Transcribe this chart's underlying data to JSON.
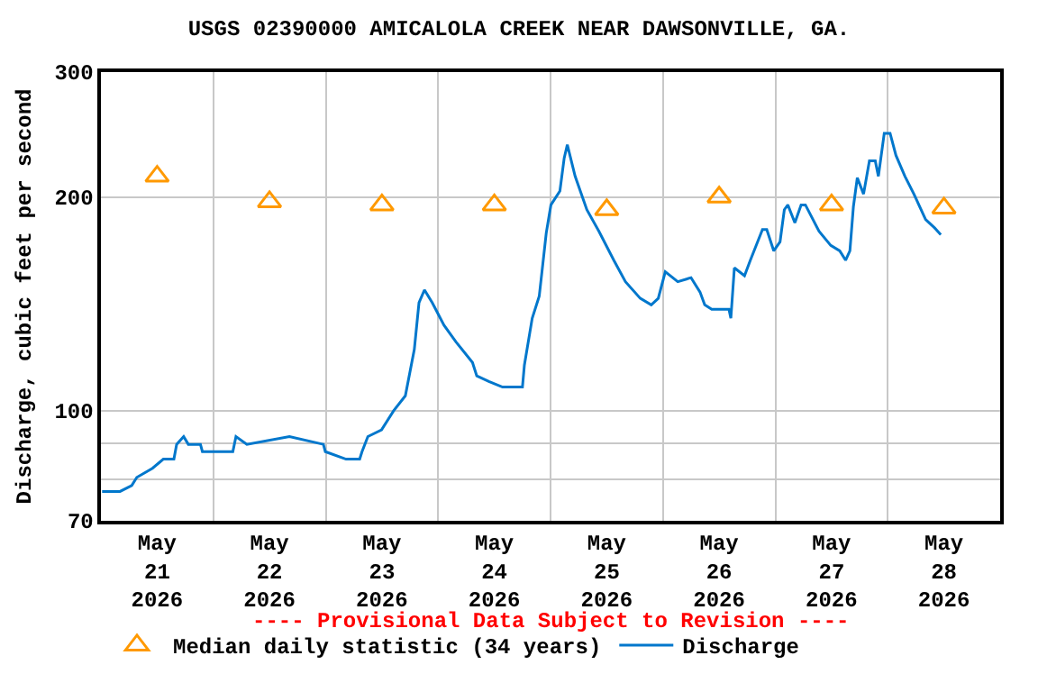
{
  "chart_data": {
    "type": "line",
    "title": "USGS 02390000 AMICALOLA CREEK NEAR DAWSONVILLE, GA.",
    "ylabel": "Discharge, cubic feet per second",
    "annotations": [
      "---- Provisional Data Subject to Revision ----"
    ],
    "log": "y",
    "grid": true,
    "legend": "bottom",
    "xlim": [
      "2026-05-21T00:00",
      "2026-05-29T00:00"
    ],
    "xticks": [
      {
        "value": "2026-05-21T12:00",
        "label": "May\n21\n2026"
      },
      {
        "value": "2026-05-22T12:00",
        "label": "May\n22\n2026"
      },
      {
        "value": "2026-05-23T12:00",
        "label": "May\n23\n2026"
      },
      {
        "value": "2026-05-24T12:00",
        "label": "May\n24\n2026"
      },
      {
        "value": "2026-05-25T12:00",
        "label": "May\n25\n2026"
      },
      {
        "value": "2026-05-26T12:00",
        "label": "May\n26\n2026"
      },
      {
        "value": "2026-05-27T12:00",
        "label": "May\n27\n2026"
      },
      {
        "value": "2026-05-28T12:00",
        "label": "May\n28\n2026"
      },
      {
        "value": "2026-05-22T00:00",
        "label": null
      },
      {
        "value": "2026-05-23T00:00",
        "label": null
      },
      {
        "value": "2026-05-24T00:00",
        "label": null
      },
      {
        "value": "2026-05-25T00:00",
        "label": null
      },
      {
        "value": "2026-05-26T00:00",
        "label": null
      },
      {
        "value": "2026-05-27T00:00",
        "label": null
      },
      {
        "value": "2026-05-28T00:00",
        "label": null
      }
    ],
    "ylim": [
      70,
      300
    ],
    "yticks": [
      70,
      {
        "value": 80,
        "label": null
      },
      {
        "value": 90,
        "label": null
      },
      100,
      200,
      300
    ],
    "series": [
      {
        "name": "Median daily statistic (34 years)",
        "type": "scatter",
        "marker": "triangle",
        "color": "#ff9900",
        "x": [
          "2026-05-21T12:00",
          "2026-05-22T12:00",
          "2026-05-23T12:00",
          "2026-05-24T12:00",
          "2026-05-25T12:00",
          "2026-05-26T12:00",
          "2026-05-27T12:00",
          "2026-05-28T12:00"
        ],
        "values": [
          214,
          197,
          195,
          195,
          192,
          200,
          195,
          193
        ]
      },
      {
        "name": "Discharge",
        "color": "#0077cc",
        "x": [
          "2026-05-21T00:15",
          "2026-05-21T04:05",
          "2026-05-21T06:35",
          "2026-05-21T07:40",
          "2026-05-21T11:00",
          "2026-05-21T13:20",
          "2026-05-21T15:35",
          "2026-05-21T16:10",
          "2026-05-21T17:40",
          "2026-05-21T18:40",
          "2026-05-21T21:15",
          "2026-05-21T21:40",
          "2026-05-22T04:10",
          "2026-05-22T04:50",
          "2026-05-22T07:10",
          "2026-05-22T16:15",
          "2026-05-22T23:30",
          "2026-05-22T23:55",
          "2026-05-23T04:20",
          "2026-05-23T07:15",
          "2026-05-23T07:45",
          "2026-05-23T09:00",
          "2026-05-23T11:55",
          "2026-05-23T14:30",
          "2026-05-23T17:00",
          "2026-05-23T18:55",
          "2026-05-23T19:55",
          "2026-05-23T21:05",
          "2026-05-23T22:45",
          "2026-05-24T01:15",
          "2026-05-24T03:50",
          "2026-05-24T07:20",
          "2026-05-24T08:15",
          "2026-05-24T10:50",
          "2026-05-24T13:45",
          "2026-05-24T18:00",
          "2026-05-24T18:25",
          "2026-05-24T20:05",
          "2026-05-24T21:35",
          "2026-05-24T22:10",
          "2026-05-24T23:05",
          "2026-05-25T00:05",
          "2026-05-25T02:00",
          "2026-05-25T02:55",
          "2026-05-25T03:35",
          "2026-05-25T05:15",
          "2026-05-25T07:45",
          "2026-05-25T10:20",
          "2026-05-25T13:30",
          "2026-05-25T16:00",
          "2026-05-25T19:10",
          "2026-05-25T21:30",
          "2026-05-25T23:00",
          "2026-05-26T00:30",
          "2026-05-26T03:10",
          "2026-05-26T06:00",
          "2026-05-26T07:55",
          "2026-05-26T08:55",
          "2026-05-26T10:25",
          "2026-05-26T14:05",
          "2026-05-26T14:30",
          "2026-05-26T15:15",
          "2026-05-26T17:25",
          "2026-05-26T18:40",
          "2026-05-26T21:15",
          "2026-05-26T22:10",
          "2026-05-26T23:40",
          "2026-05-27T01:00",
          "2026-05-27T01:55",
          "2026-05-27T02:40",
          "2026-05-27T04:10",
          "2026-05-27T05:30",
          "2026-05-27T06:25",
          "2026-05-27T09:20",
          "2026-05-27T11:50",
          "2026-05-27T13:45",
          "2026-05-27T15:00",
          "2026-05-27T15:55",
          "2026-05-27T16:40",
          "2026-05-27T17:30",
          "2026-05-27T18:50",
          "2026-05-27T20:05",
          "2026-05-27T21:20",
          "2026-05-27T22:00",
          "2026-05-27T23:15",
          "2026-05-28T00:30",
          "2026-05-28T01:45",
          "2026-05-28T03:40",
          "2026-05-28T05:35",
          "2026-05-28T08:05",
          "2026-05-28T10:00",
          "2026-05-28T11:20"
        ],
        "values": [
          77,
          77,
          78.5,
          80.6,
          83,
          85.5,
          85.5,
          89.7,
          92,
          89.7,
          89.7,
          87.6,
          87.6,
          92,
          89.7,
          92,
          89.7,
          87.6,
          85.5,
          85.5,
          87.6,
          92,
          94,
          100,
          105,
          122,
          142,
          148,
          142,
          132,
          125,
          117,
          112,
          110,
          108,
          108,
          116,
          135,
          145,
          157,
          178,
          195,
          204,
          227,
          237,
          214,
          192,
          179,
          163,
          152,
          144,
          141,
          144,
          157,
          152,
          154,
          147,
          141,
          139,
          139,
          135,
          159,
          155,
          163,
          180,
          180,
          168,
          173,
          192,
          195,
          184,
          195,
          195,
          179,
          171,
          168,
          163,
          168,
          194,
          213,
          202,
          225,
          225,
          214,
          246,
          246,
          229,
          214,
          202,
          186,
          181,
          177
        ]
      }
    ]
  }
}
